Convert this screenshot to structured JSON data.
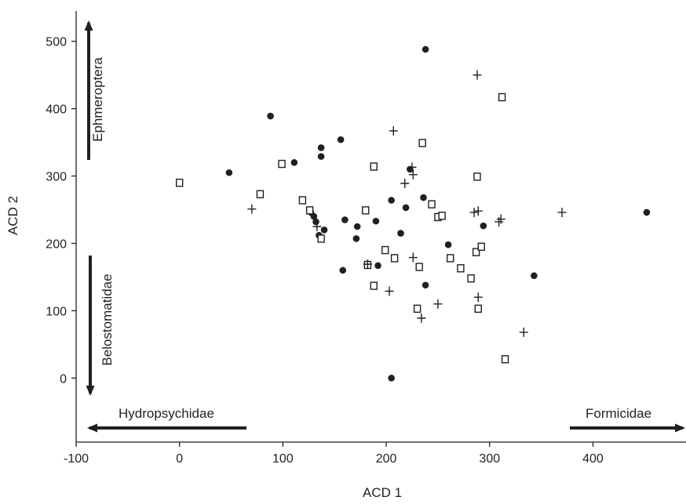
{
  "chart_data": {
    "type": "scatter",
    "title": "",
    "xlabel": "ACD 1",
    "ylabel": "ACD 2",
    "xlim": [
      -100,
      490
    ],
    "ylim": [
      -95,
      545
    ],
    "xticks": [
      -100,
      0,
      100,
      200,
      300,
      400
    ],
    "yticks": [
      0,
      100,
      200,
      300,
      400,
      500
    ],
    "grid": false,
    "legend": "none",
    "colors": {
      "ink": "#231f20",
      "open_fill": "#ffffff"
    },
    "series": [
      {
        "marker": "filled-circle",
        "points": [
          [
            238,
            488
          ],
          [
            88,
            389
          ],
          [
            137,
            342
          ],
          [
            156,
            354
          ],
          [
            137,
            329
          ],
          [
            111,
            320
          ],
          [
            48,
            305
          ],
          [
            223,
            310
          ],
          [
            127,
            246
          ],
          [
            130,
            240
          ],
          [
            132,
            232
          ],
          [
            140,
            220
          ],
          [
            135,
            212
          ],
          [
            160,
            235
          ],
          [
            172,
            225
          ],
          [
            171,
            207
          ],
          [
            190,
            233
          ],
          [
            205,
            264
          ],
          [
            219,
            253
          ],
          [
            236,
            268
          ],
          [
            214,
            215
          ],
          [
            260,
            198
          ],
          [
            294,
            226
          ],
          [
            158,
            160
          ],
          [
            192,
            167
          ],
          [
            238,
            138
          ],
          [
            343,
            152
          ],
          [
            452,
            246
          ],
          [
            205,
            0
          ]
        ]
      },
      {
        "marker": "open-square",
        "points": [
          [
            0,
            290
          ],
          [
            78,
            273
          ],
          [
            99,
            318
          ],
          [
            119,
            264
          ],
          [
            126,
            249
          ],
          [
            137,
            207
          ],
          [
            180,
            249
          ],
          [
            188,
            314
          ],
          [
            235,
            349
          ],
          [
            250,
            239
          ],
          [
            254,
            241
          ],
          [
            244,
            258
          ],
          [
            199,
            190
          ],
          [
            208,
            178
          ],
          [
            188,
            137
          ],
          [
            182,
            168
          ],
          [
            230,
            103
          ],
          [
            232,
            165
          ],
          [
            262,
            178
          ],
          [
            272,
            163
          ],
          [
            282,
            148
          ],
          [
            287,
            187
          ],
          [
            292,
            195
          ],
          [
            288,
            299
          ],
          [
            289,
            103
          ],
          [
            312,
            417
          ],
          [
            315,
            28
          ]
        ]
      },
      {
        "marker": "plus",
        "points": [
          [
            70,
            251
          ],
          [
            133,
            225
          ],
          [
            207,
            367
          ],
          [
            218,
            289
          ],
          [
            226,
            302
          ],
          [
            225,
            313
          ],
          [
            285,
            246
          ],
          [
            289,
            248
          ],
          [
            309,
            232
          ],
          [
            311,
            236
          ],
          [
            370,
            246
          ],
          [
            288,
            450
          ],
          [
            182,
            169
          ],
          [
            203,
            129
          ],
          [
            226,
            179
          ],
          [
            250,
            110
          ],
          [
            234,
            89
          ],
          [
            289,
            120
          ],
          [
            333,
            68
          ]
        ]
      }
    ],
    "annotations": [
      {
        "text": "Ephmeroptera",
        "arrow": "vertical-up"
      },
      {
        "text": "Belostomatidae",
        "arrow": "vertical-down"
      },
      {
        "text": "Hydropsychidae",
        "arrow": "horizontal-left"
      },
      {
        "text": "Formicidae",
        "arrow": "horizontal-right"
      }
    ]
  }
}
